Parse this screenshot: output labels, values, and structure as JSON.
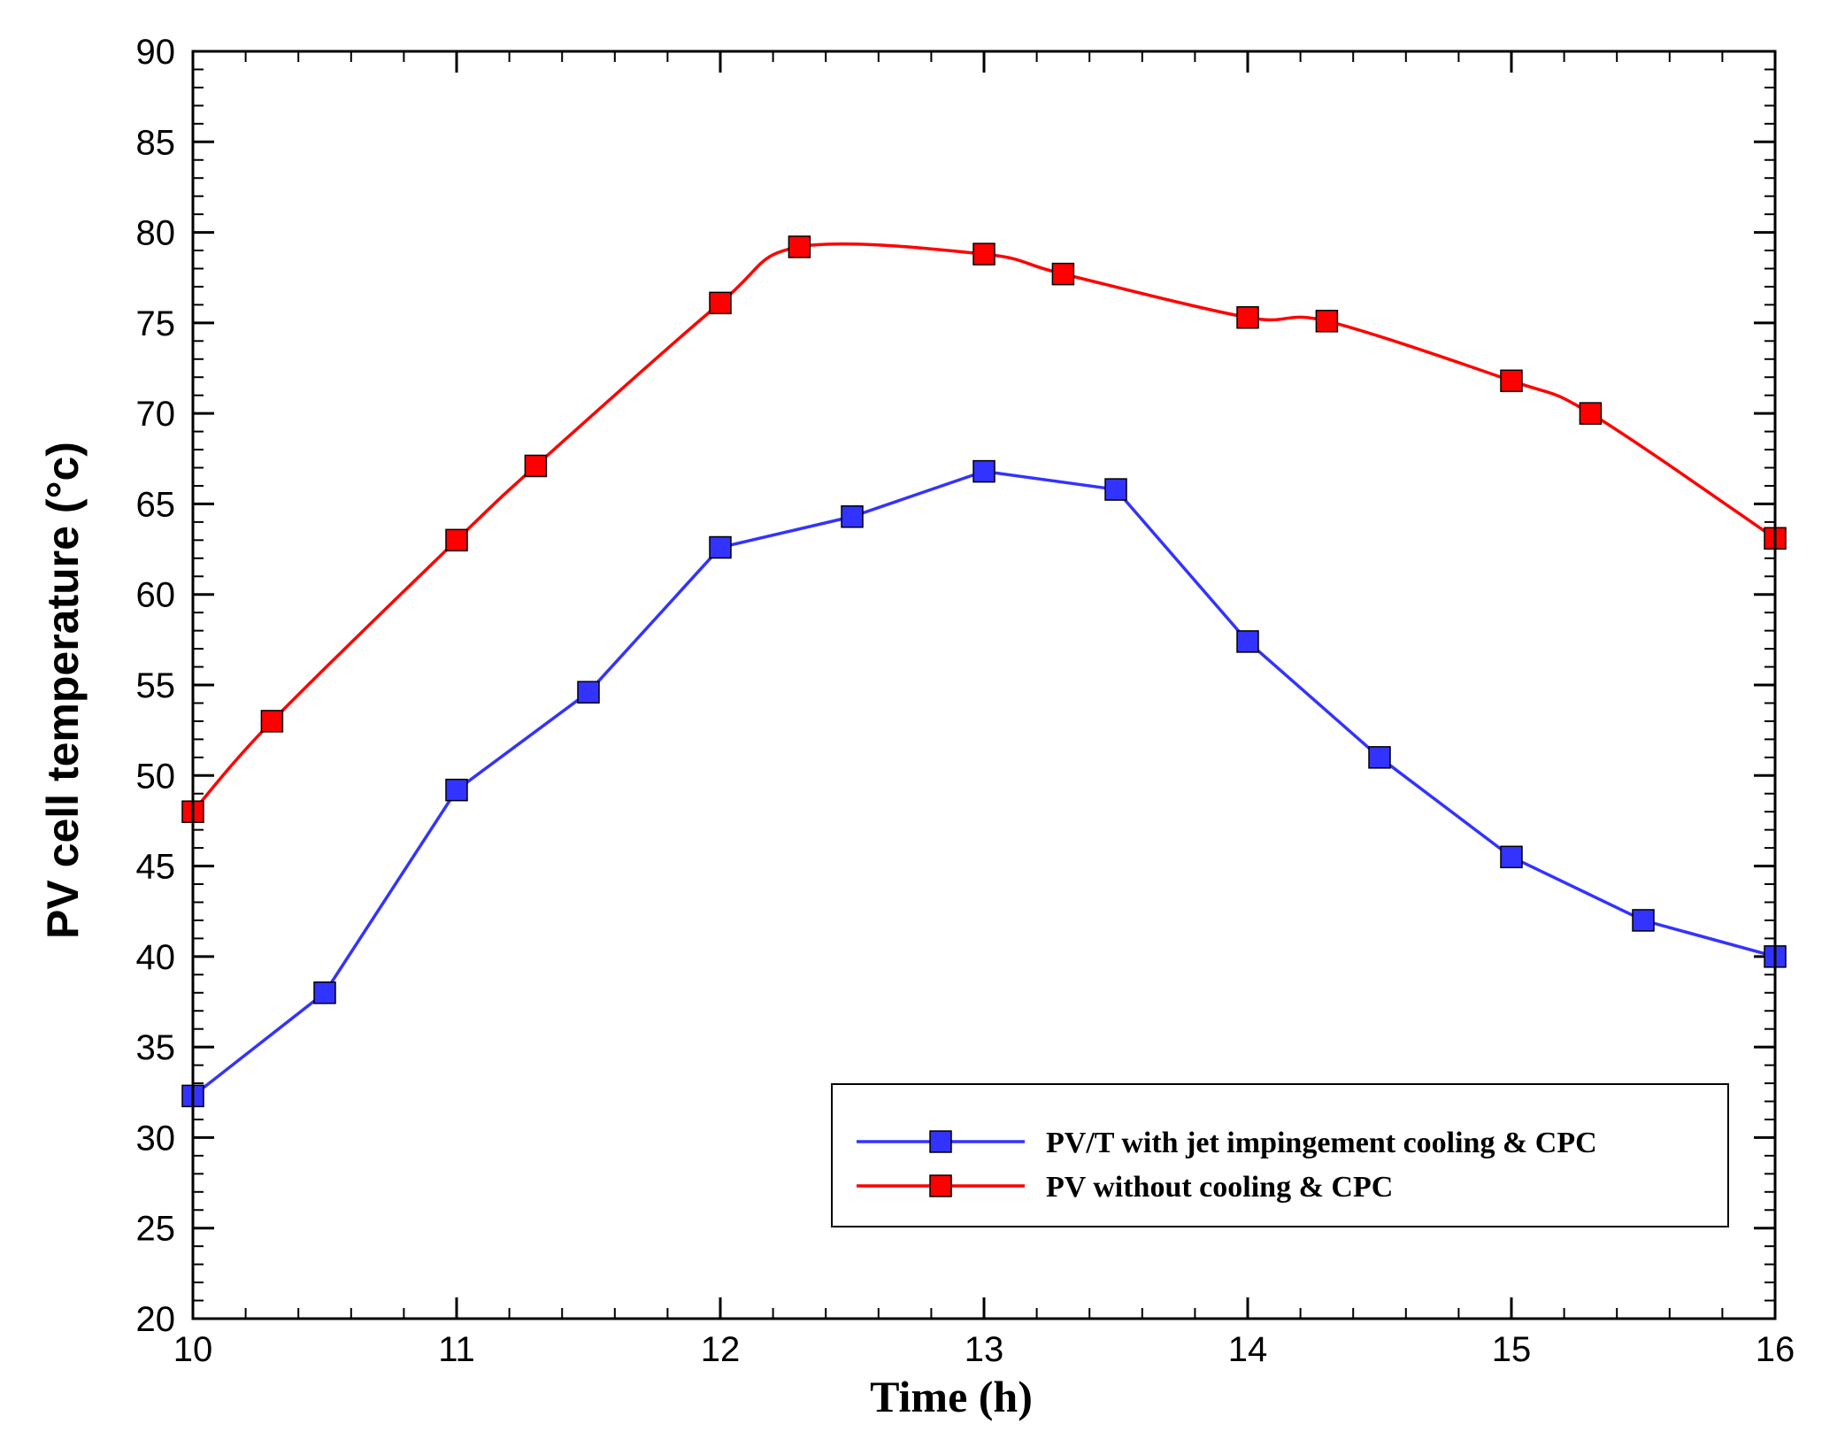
{
  "chart_data": {
    "type": "line",
    "xlabel": "Time (h)",
    "ylabel": "PV cell temperature (°c)",
    "xlim": [
      10,
      16
    ],
    "ylim": [
      20,
      90
    ],
    "x_ticks": [
      10,
      11,
      12,
      13,
      14,
      15,
      16
    ],
    "y_ticks": [
      20,
      25,
      30,
      35,
      40,
      45,
      50,
      55,
      60,
      65,
      70,
      75,
      80,
      85,
      90
    ],
    "x_minor_step": 0.2,
    "y_minor_step": 1,
    "grid": false,
    "legend_position": "bottom-right",
    "series": [
      {
        "name": "PV/T with jet impingement cooling & CPC",
        "color": "#3333ff",
        "marker": "square",
        "smooth": false,
        "x": [
          10,
          10.5,
          11,
          11.5,
          12,
          12.5,
          13,
          13.5,
          14,
          14.5,
          15,
          15.5,
          16
        ],
        "y": [
          32.3,
          38,
          49.2,
          54.6,
          62.6,
          64.3,
          66.8,
          65.8,
          57.4,
          51,
          45.5,
          42,
          40
        ]
      },
      {
        "name": "PV without cooling & CPC",
        "color": "#ff0000",
        "marker": "square",
        "smooth": true,
        "x": [
          10,
          10.3,
          11,
          11.3,
          12,
          12.3,
          13,
          13.3,
          14,
          14.3,
          15,
          15.3,
          16
        ],
        "y": [
          48,
          53,
          63,
          67.1,
          76.1,
          79.2,
          78.8,
          77.7,
          75.3,
          75.1,
          71.8,
          70,
          63.1
        ]
      }
    ]
  }
}
